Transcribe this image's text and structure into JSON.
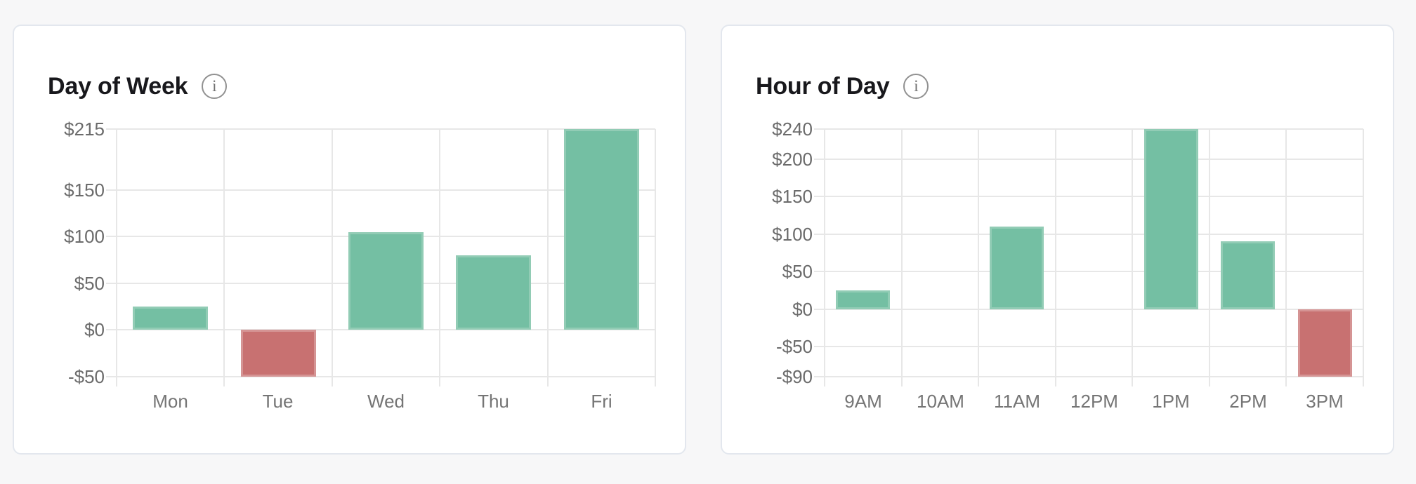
{
  "page": {
    "background": "#f7f7f8",
    "card_background": "#ffffff",
    "card_border": "#e3e7ee"
  },
  "icons": {
    "info_glyph": "i"
  },
  "cards": [
    {
      "title": "Day of Week"
    },
    {
      "title": "Hour of Day"
    }
  ],
  "chart_data": [
    {
      "type": "bar",
      "title": "Day of Week",
      "categories": [
        "Mon",
        "Tue",
        "Wed",
        "Thu",
        "Fri"
      ],
      "values": [
        25,
        -50,
        105,
        80,
        215
      ],
      "y_ticks": [
        215,
        150,
        100,
        50,
        0,
        -50
      ],
      "y_tick_labels": [
        "$215",
        "$150",
        "$100",
        "$50",
        "$0",
        "-$50"
      ],
      "ylim": [
        -50,
        215
      ],
      "xlabel": "",
      "ylabel": "",
      "grid": true,
      "legend": "none",
      "colors": {
        "positive": "#74bfa3",
        "positive_edge": "#92ccb5",
        "negative": "#c87171",
        "negative_edge": "#d59494",
        "gridline": "#e7e7e7",
        "axis_text": "#6b6b6b"
      }
    },
    {
      "type": "bar",
      "title": "Hour of Day",
      "categories": [
        "9AM",
        "10AM",
        "11AM",
        "12PM",
        "1PM",
        "2PM",
        "3PM"
      ],
      "values": [
        25,
        0,
        110,
        0,
        240,
        90,
        -90
      ],
      "y_ticks": [
        240,
        200,
        150,
        100,
        50,
        0,
        -50,
        -90
      ],
      "y_tick_labels": [
        "$240",
        "$200",
        "$150",
        "$100",
        "$50",
        "$0",
        "-$50",
        "-$90"
      ],
      "ylim": [
        -90,
        240
      ],
      "xlabel": "",
      "ylabel": "",
      "grid": true,
      "legend": "none",
      "colors": {
        "positive": "#74bfa3",
        "positive_edge": "#92ccb5",
        "negative": "#c87171",
        "negative_edge": "#d59494",
        "gridline": "#e7e7e7",
        "axis_text": "#6b6b6b"
      }
    }
  ]
}
